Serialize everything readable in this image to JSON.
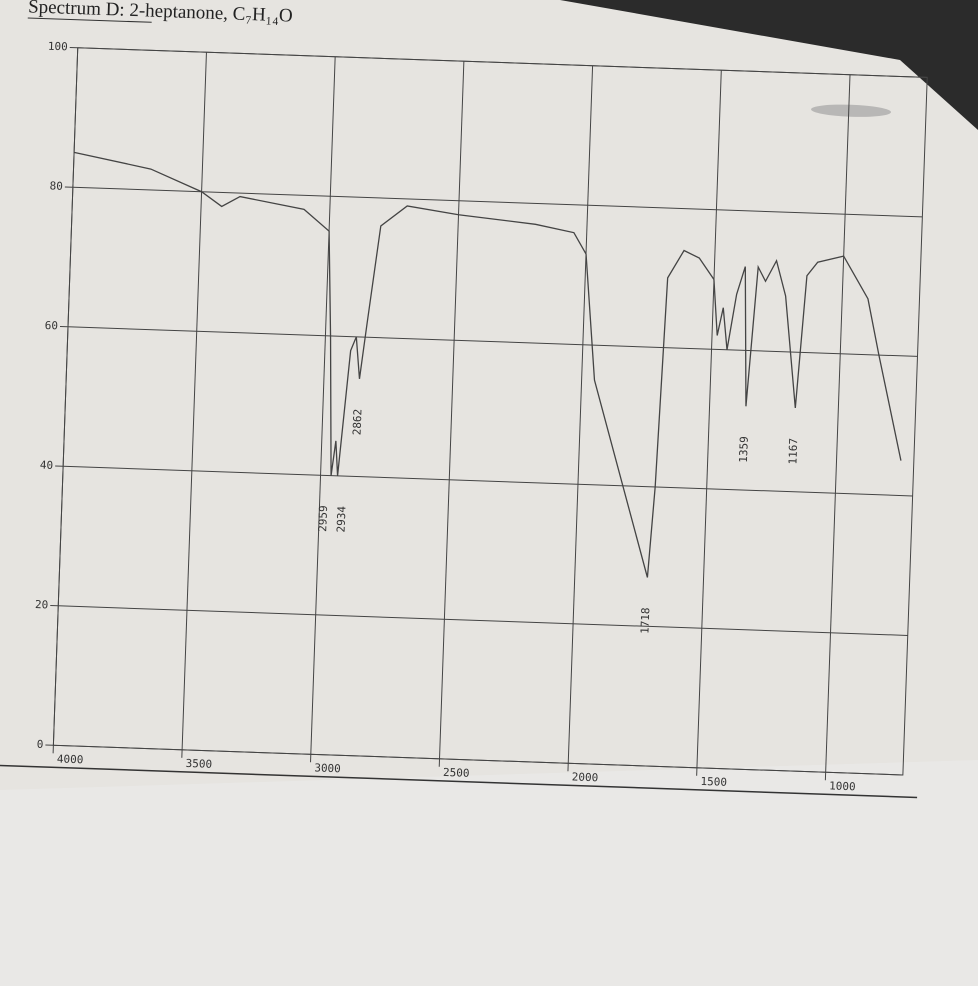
{
  "chart_data": {
    "type": "line",
    "title": "Spectrum D: 2-heptanone, C₇H₁₄O",
    "x": [
      4000,
      3700,
      3500,
      3420,
      3350,
      3100,
      3000,
      2980,
      2959,
      2945,
      2934,
      2900,
      2880,
      2862,
      2840,
      2800,
      2700,
      2500,
      2200,
      2050,
      2000,
      1950,
      1718,
      1700,
      1680,
      1620,
      1560,
      1500,
      1480,
      1460,
      1440,
      1410,
      1380,
      1359,
      1330,
      1300,
      1260,
      1220,
      1167,
      1140,
      1100,
      1000,
      950,
      900,
      850,
      750
    ],
    "series": [
      {
        "color": "#444444",
        "values": [
          85,
          83,
          80,
          78,
          79.5,
          78,
          75,
          60,
          40,
          45,
          40,
          58,
          60,
          54,
          62,
          76,
          79,
          78,
          77,
          76,
          73,
          55,
          27,
          40,
          70,
          74,
          73,
          70,
          62,
          66,
          60,
          68,
          72,
          52,
          72,
          70,
          73,
          68,
          52,
          71,
          73,
          74,
          71,
          68,
          60,
          45
        ]
      }
    ],
    "xlim": [
      4000,
      700
    ],
    "xticks": [
      4000,
      3500,
      3000,
      2500,
      2000,
      1500,
      1000
    ],
    "ylim": [
      0,
      100
    ],
    "yticks": [
      0,
      20,
      40,
      60,
      80,
      100
    ],
    "grid": true,
    "peak_labels": [
      2959,
      2934,
      2862,
      1718,
      1359,
      1167
    ]
  }
}
